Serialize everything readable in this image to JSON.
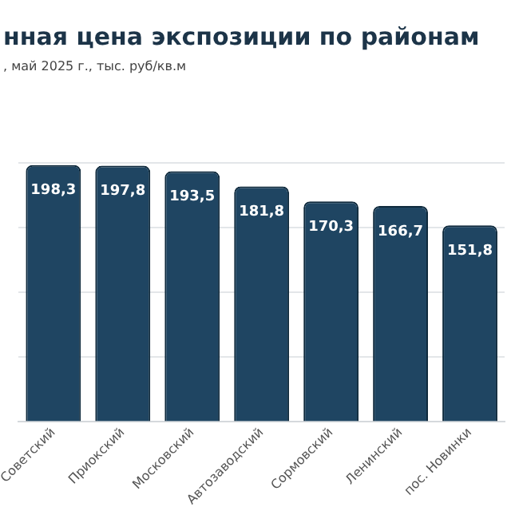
{
  "chart_data": {
    "type": "bar",
    "title": "нная цена экспозиции по районам",
    "subtitle": ", май 2025 г., тыс. руб/кв.м",
    "categories": [
      "Советский",
      "Приокский",
      "Московский",
      "Автозаводский",
      "Сормовский",
      "Ленинский",
      "пос. Новинки"
    ],
    "values": [
      198.3,
      197.8,
      193.5,
      181.8,
      170.3,
      166.7,
      151.8
    ],
    "value_labels": [
      "198,3",
      "197,8",
      "193,5",
      "181,8",
      "170,3",
      "166,7",
      "151,8"
    ],
    "color": "#1f4562",
    "ylim": [
      0,
      200
    ],
    "yticks": [
      0,
      50,
      100,
      150,
      200
    ],
    "grid": "y",
    "tick_labels": "x",
    "legend": false
  }
}
